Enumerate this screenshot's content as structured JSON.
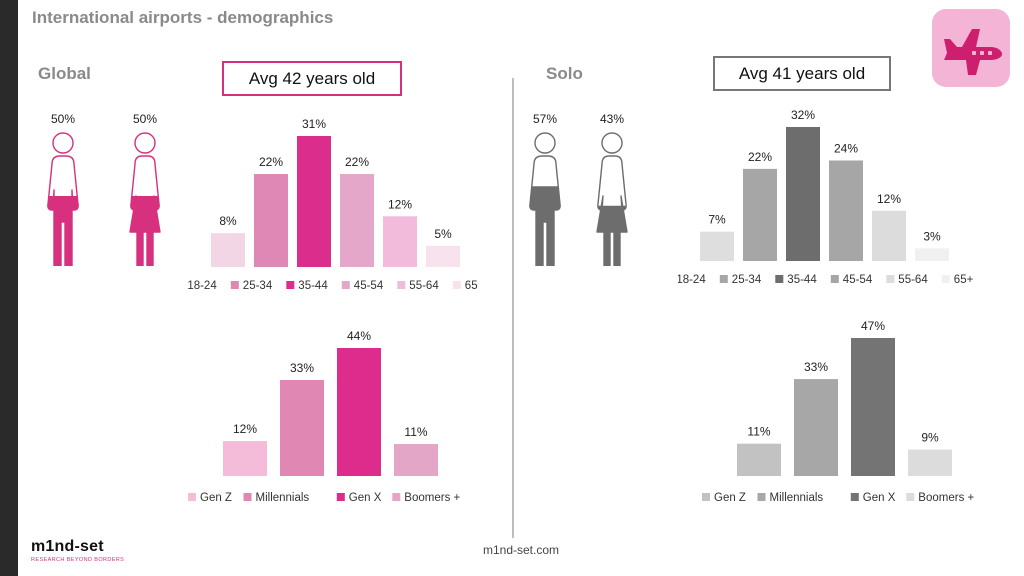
{
  "title": "International airports - demographics",
  "footer": "m1nd-set.com",
  "logo": {
    "word": "m1nd-set",
    "tagline": "RESEARCH BEYOND BORDERS"
  },
  "global": {
    "label": "Global",
    "avg": "Avg  42 years old",
    "gender": {
      "male_pct": "50%",
      "female_pct": "50%",
      "male_share": 0.5,
      "female_share": 0.5
    }
  },
  "solo": {
    "label": "Solo",
    "avg": "Avg  41 years old",
    "gender": {
      "male_pct": "57%",
      "female_pct": "43%",
      "male_share": 0.57,
      "female_share": 0.43
    }
  },
  "icons": {
    "badge": "airplane-icon",
    "male": "male-figure-icon",
    "female": "female-figure-icon"
  },
  "colors": {
    "global_age": [
      "#f3d6e5",
      "#e088b5",
      "#db2d8c",
      "#e4a7c9",
      "#f2bbdc",
      "#f7e2ed"
    ],
    "global_gen": [
      "#f4bcd9",
      "#e187b4",
      "#dd2c8b",
      "#e4a6c6"
    ],
    "solo_age": [
      "#dedede",
      "#a6a6a6",
      "#6d6d6d",
      "#a6a6a6",
      "#dcdcdc",
      "#f0f0f0"
    ],
    "solo_gen": [
      "#c2c2c2",
      "#a7a7a7",
      "#747474",
      "#dcdcdc"
    ],
    "global_figure": "#d6307f",
    "solo_figure": "#6d6d6d"
  },
  "chart_data": [
    {
      "id": "global-age",
      "type": "bar",
      "categories": [
        "18-24",
        "25-34",
        "35-44",
        "45-54",
        "55-64",
        "65+"
      ],
      "values": [
        8,
        22,
        31,
        22,
        12,
        5
      ],
      "labels": [
        "8%",
        "22%",
        "31%",
        "22%",
        "12%",
        "5%"
      ],
      "ylim": [
        0,
        31
      ],
      "legend": "bottom",
      "grid": false
    },
    {
      "id": "global-generation",
      "type": "bar",
      "categories": [
        "Gen Z",
        "Millennials",
        "Gen X",
        "Boomers +"
      ],
      "values": [
        12,
        33,
        44,
        11
      ],
      "labels": [
        "12%",
        "33%",
        "44%",
        "11%"
      ],
      "ylim": [
        0,
        44
      ],
      "legend": "bottom",
      "grid": false
    },
    {
      "id": "solo-age",
      "type": "bar",
      "categories": [
        "18-24",
        "25-34",
        "35-44",
        "45-54",
        "55-64",
        "65+"
      ],
      "values": [
        7,
        22,
        32,
        24,
        12,
        3
      ],
      "labels": [
        "7%",
        "22%",
        "32%",
        "24%",
        "12%",
        "3%"
      ],
      "ylim": [
        0,
        32
      ],
      "legend": "bottom",
      "grid": false
    },
    {
      "id": "solo-generation",
      "type": "bar",
      "categories": [
        "Gen Z",
        "Millennials",
        "Gen X",
        "Boomers +"
      ],
      "values": [
        11,
        33,
        47,
        9
      ],
      "labels": [
        "11%",
        "33%",
        "47%",
        "9%"
      ],
      "ylim": [
        0,
        47
      ],
      "legend": "bottom",
      "grid": false
    }
  ]
}
